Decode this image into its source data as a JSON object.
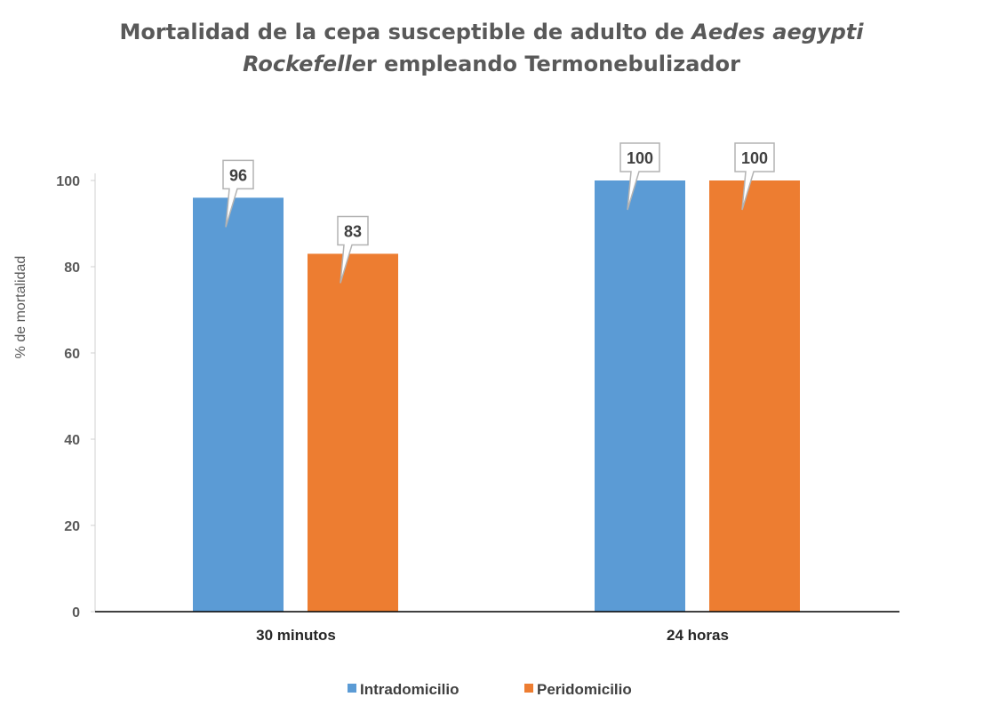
{
  "chart_data": {
    "type": "bar",
    "title_line1_a": "Mortalidad de la cepa  susceptible de adulto de ",
    "title_line1_b": "Aedes aegypti",
    "title_line2_a": "Rockefelle",
    "title_line2_b": "r  empleando Termonebulizador",
    "ylabel": "% de mortalidad",
    "xlabel": "",
    "categories": [
      "30 minutos",
      "24  horas"
    ],
    "series": [
      {
        "name": "Intradomicilio",
        "color": "#5B9BD5",
        "values": [
          96,
          100
        ]
      },
      {
        "name": "Peridomicilio",
        "color": "#ED7D31",
        "values": [
          83,
          100
        ]
      }
    ],
    "ylim": [
      0,
      100
    ],
    "yticks": [
      0,
      20,
      40,
      60,
      80,
      100
    ],
    "grid": false,
    "legend_position": "bottom",
    "data_labels": true
  }
}
